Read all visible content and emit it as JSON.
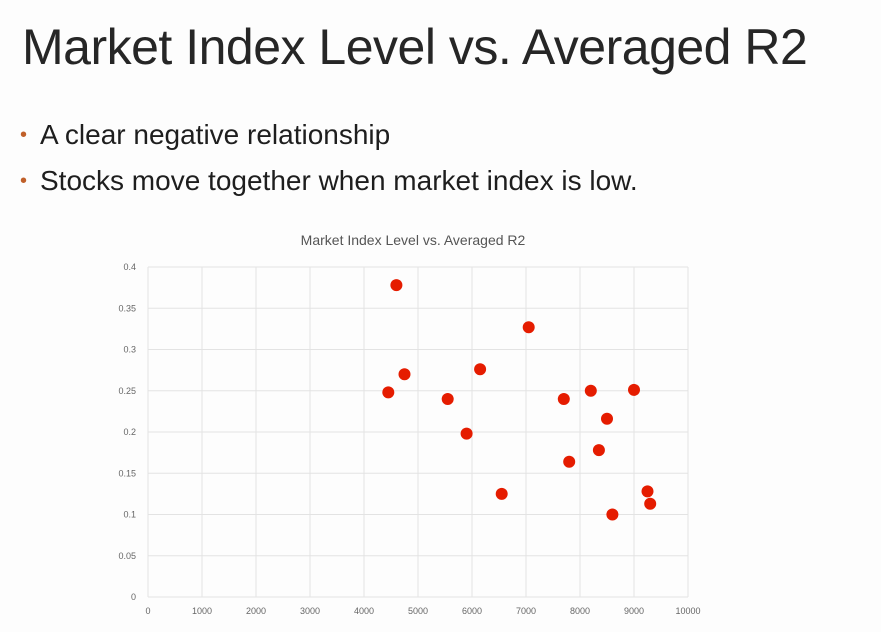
{
  "slide": {
    "title": "Market Index Level vs. Averaged R2",
    "bullets": [
      "A clear negative relationship",
      "Stocks move together when market index is low."
    ]
  },
  "colors": {
    "bullet": "#c0602a",
    "point": "#e51c00",
    "grid": "#e3e3e3",
    "axis_text": "#666666"
  },
  "chart_data": {
    "type": "scatter",
    "title": "Market Index Level vs. Averaged R2",
    "xlabel": "",
    "ylabel": "",
    "xlim": [
      0,
      10000
    ],
    "ylim": [
      0,
      0.4
    ],
    "x_ticks": [
      0,
      1000,
      2000,
      3000,
      4000,
      5000,
      6000,
      7000,
      8000,
      9000,
      10000
    ],
    "y_ticks": [
      0,
      0.05,
      0.1,
      0.15,
      0.2,
      0.25,
      0.3,
      0.35,
      0.4
    ],
    "x_tick_labels": [
      "0",
      "1000",
      "2000",
      "3000",
      "4000",
      "5000",
      "6000",
      "7000",
      "8000",
      "9000",
      "10000"
    ],
    "y_tick_labels": [
      "0",
      "0.05",
      "0.1",
      "0.15",
      "0.2",
      "0.25",
      "0.3",
      "0.35",
      "0.4"
    ],
    "grid": true,
    "legend": "none",
    "series": [
      {
        "points": [
          {
            "x": 4600,
            "y": 0.378
          },
          {
            "x": 4750,
            "y": 0.27
          },
          {
            "x": 4450,
            "y": 0.248
          },
          {
            "x": 5550,
            "y": 0.24
          },
          {
            "x": 5900,
            "y": 0.198
          },
          {
            "x": 6150,
            "y": 0.276
          },
          {
            "x": 6550,
            "y": 0.125
          },
          {
            "x": 7050,
            "y": 0.327
          },
          {
            "x": 7700,
            "y": 0.24
          },
          {
            "x": 7800,
            "y": 0.164
          },
          {
            "x": 8200,
            "y": 0.25
          },
          {
            "x": 8350,
            "y": 0.178
          },
          {
            "x": 8500,
            "y": 0.216
          },
          {
            "x": 8600,
            "y": 0.1
          },
          {
            "x": 9000,
            "y": 0.251
          },
          {
            "x": 9250,
            "y": 0.128
          },
          {
            "x": 9300,
            "y": 0.113
          }
        ]
      }
    ]
  }
}
